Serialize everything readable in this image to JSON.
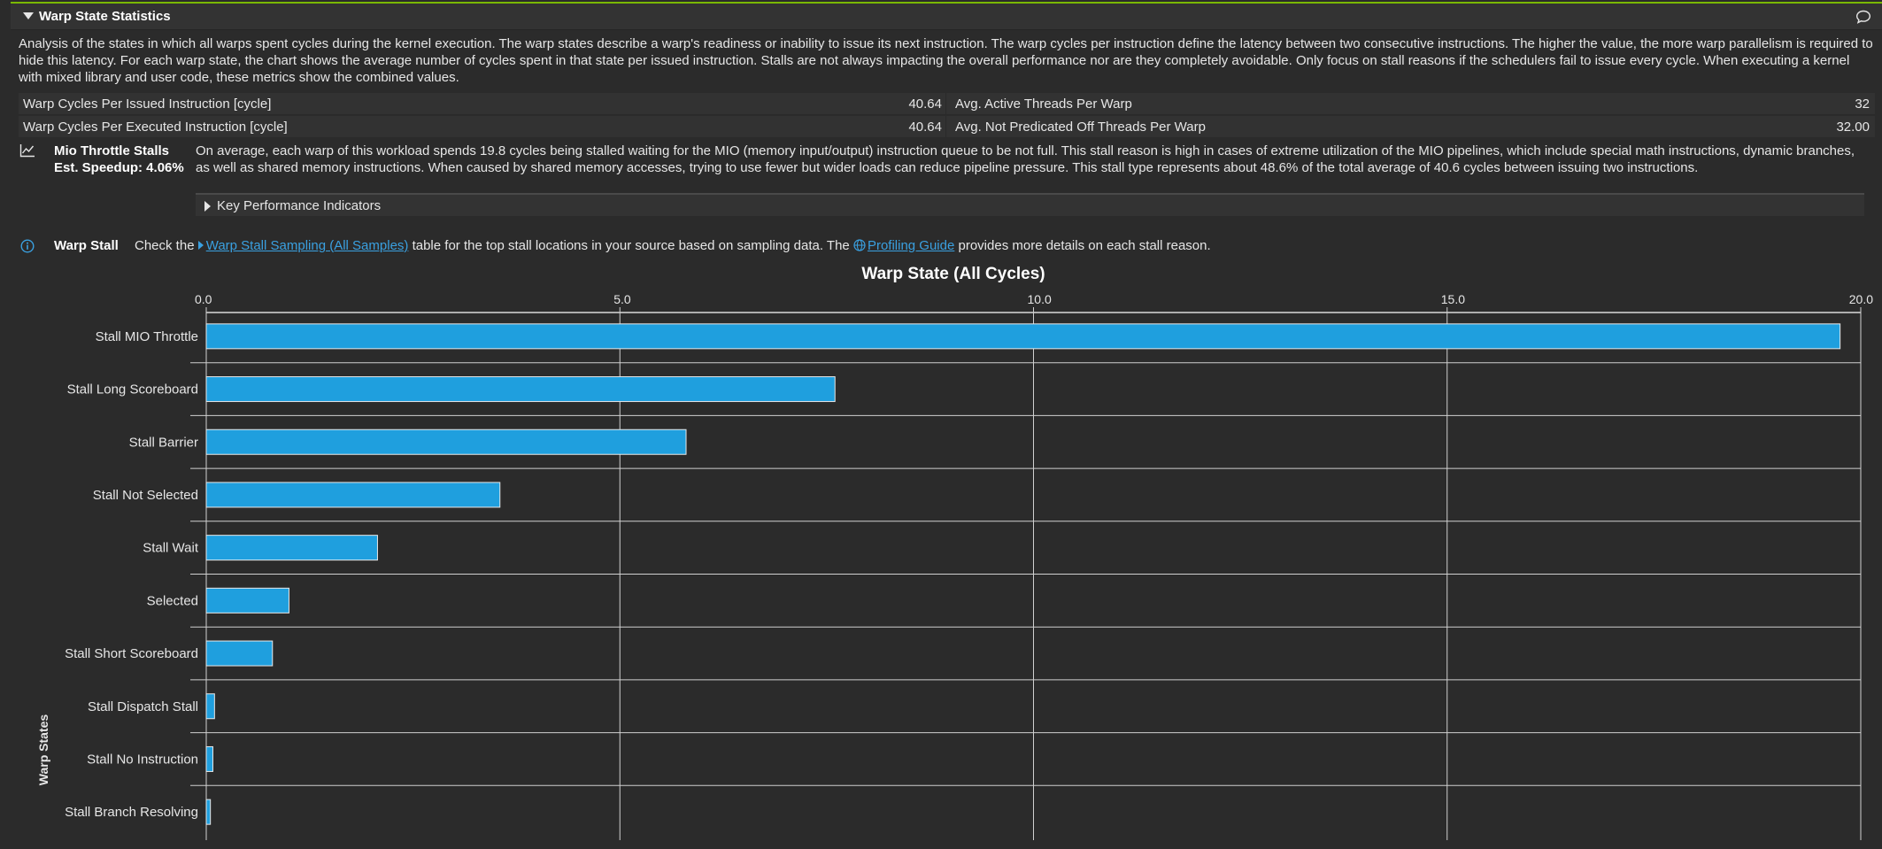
{
  "section": {
    "title": "Warp State Statistics",
    "description": "Analysis of the states in which all warps spent cycles during the kernel execution. The warp states describe a warp's readiness or inability to issue its next instruction. The warp cycles per instruction define the latency between two consecutive instructions. The higher the value, the more warp parallelism is required to hide this latency. For each warp state, the chart shows the average number of cycles spent in that state per issued instruction. Stalls are not always impacting the overall performance nor are they completely avoidable. Only focus on stall reasons if the schedulers fail to issue every cycle. When executing a kernel with mixed library and user code, these metrics show the combined values."
  },
  "metrics": [
    {
      "left_name": "Warp Cycles Per Issued Instruction [cycle]",
      "left_value": "40.64",
      "right_name": "Avg. Active Threads Per Warp",
      "right_value": "32"
    },
    {
      "left_name": "Warp Cycles Per Executed Instruction [cycle]",
      "left_value": "40.64",
      "right_name": "Avg. Not Predicated Off Threads Per Warp",
      "right_value": "32.00"
    }
  ],
  "rule": {
    "title": "Mio Throttle Stalls",
    "speedup": "Est. Speedup: 4.06%",
    "text": "On average, each warp of this workload spends 19.8 cycles being stalled waiting for the MIO (memory input/output) instruction queue to be not full. This stall reason is high in cases of extreme utilization of the MIO pipelines, which include special math instructions, dynamic branches, as well as shared memory instructions. When caused by shared memory accesses, trying to use fewer but wider loads can reduce pipeline pressure. This stall type represents about 48.6% of the total average of 40.6 cycles between issuing two instructions.",
    "kpi_label": "Key Performance Indicators"
  },
  "info": {
    "title": "Warp Stall",
    "text_before": "Check the",
    "link1": "Warp Stall Sampling (All Samples)",
    "text_middle": "table for the top stall locations in your source based on sampling data. The",
    "link2": "Profiling Guide",
    "text_after": "provides more details on each stall reason."
  },
  "colors": {
    "accent": "#7ab800",
    "bar": "#1f9fde",
    "link": "#3aa0e0",
    "background": "#2b2b2b"
  },
  "icons": {
    "header": "chevron-down-icon",
    "comment": "comment-icon",
    "rule": "line-chart-icon",
    "info": "info-icon",
    "globe": "globe-icon"
  },
  "chart_data": {
    "type": "bar",
    "orientation": "horizontal",
    "title": "Warp State (All Cycles)",
    "ylabel": "Warp States",
    "xlabel": "",
    "xlim": [
      0,
      20
    ],
    "ticks": [
      "0.0",
      "5.0",
      "10.0",
      "15.0",
      "20.0"
    ],
    "tick_values": [
      0,
      5,
      10,
      15,
      20
    ],
    "grid": true,
    "categories": [
      "Stall MIO Throttle",
      "Stall Long Scoreboard",
      "Stall Barrier",
      "Stall Not Selected",
      "Stall Wait",
      "Selected",
      "Stall Short Scoreboard",
      "Stall Dispatch Stall",
      "Stall No Instruction",
      "Stall Branch Resolving"
    ],
    "values": [
      19.75,
      7.6,
      5.8,
      3.55,
      2.07,
      1.0,
      0.8,
      0.1,
      0.08,
      0.05
    ]
  }
}
